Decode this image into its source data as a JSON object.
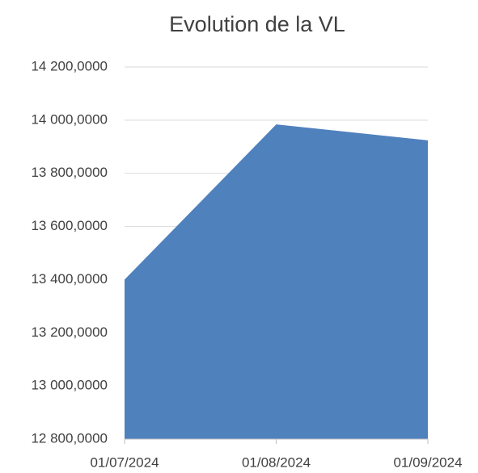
{
  "chart_data": {
    "type": "area",
    "title": "Evolution de la VL",
    "categories": [
      "01/07/2024",
      "01/08/2024",
      "01/09/2024"
    ],
    "values": [
      13400,
      13984,
      13924
    ],
    "color": "#4f81bd",
    "ylim": [
      12800,
      14200
    ],
    "yticks": [
      {
        "value": 12800,
        "label": "12 800,0000"
      },
      {
        "value": 13000,
        "label": "13 000,0000"
      },
      {
        "value": 13200,
        "label": "13 200,0000"
      },
      {
        "value": 13400,
        "label": "13 400,0000"
      },
      {
        "value": 13600,
        "label": "13 600,0000"
      },
      {
        "value": 13800,
        "label": "13 800,0000"
      },
      {
        "value": 14000,
        "label": "14 000,0000"
      },
      {
        "value": 14200,
        "label": "14 200,0000"
      }
    ],
    "grid": true
  }
}
